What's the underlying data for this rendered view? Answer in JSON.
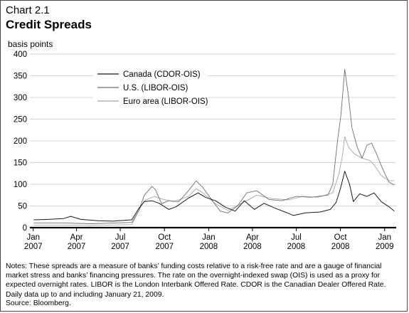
{
  "figure": {
    "chart_number": "Chart 2.1",
    "title": "Credit Spreads",
    "unit_label": "basis points",
    "notes": "Notes: These spreads are a measure of banks’ funding costs relative to a risk-free rate and are a gauge of financial market stress and banks’ financing pressures. The rate on the overnight-indexed swap (OIS) is used as a proxy for expected overnight rates. LIBOR is the London Interbank Offered Rate. CDOR is the Canadian Dealer Offered Rate. Daily data up to and including January 21, 2009.",
    "source": "Source: Bloomberg."
  },
  "chart_data": {
    "type": "line",
    "title": "Credit Spreads",
    "ylabel": "basis points",
    "ylim": [
      0,
      400
    ],
    "yticks": [
      0,
      50,
      100,
      150,
      200,
      250,
      300,
      350,
      400
    ],
    "xlim": [
      "2006-12-25",
      "2009-01-25"
    ],
    "xticks": [
      {
        "date": "2007-01-01",
        "label": [
          "Jan",
          "2007"
        ]
      },
      {
        "date": "2007-04-01",
        "label": [
          "Apr",
          "2007"
        ]
      },
      {
        "date": "2007-07-01",
        "label": [
          "Jul",
          "2007"
        ]
      },
      {
        "date": "2007-10-01",
        "label": [
          "Oct",
          "2007"
        ]
      },
      {
        "date": "2008-01-01",
        "label": [
          "Jan",
          "2008"
        ]
      },
      {
        "date": "2008-04-01",
        "label": [
          "Apr",
          "2008"
        ]
      },
      {
        "date": "2008-07-01",
        "label": [
          "Jul",
          "2008"
        ]
      },
      {
        "date": "2008-10-01",
        "label": [
          "Oct",
          "2008"
        ]
      },
      {
        "date": "2009-01-01",
        "label": [
          "Jan",
          "2009"
        ]
      }
    ],
    "grid": true,
    "legend_position": "top-left",
    "series": [
      {
        "name": "Canada (CDOR-OIS)",
        "color": "#1a1a1a",
        "width": 1.0,
        "points": [
          [
            "2007-01-02",
            18
          ],
          [
            "2007-02-01",
            19
          ],
          [
            "2007-03-05",
            21
          ],
          [
            "2007-03-20",
            26
          ],
          [
            "2007-04-10",
            19
          ],
          [
            "2007-05-15",
            16
          ],
          [
            "2007-06-15",
            15
          ],
          [
            "2007-07-25",
            18
          ],
          [
            "2007-08-09",
            45
          ],
          [
            "2007-08-20",
            60
          ],
          [
            "2007-09-05",
            62
          ],
          [
            "2007-09-20",
            56
          ],
          [
            "2007-10-10",
            42
          ],
          [
            "2007-10-25",
            48
          ],
          [
            "2007-11-20",
            68
          ],
          [
            "2007-12-10",
            80
          ],
          [
            "2007-12-25",
            70
          ],
          [
            "2008-01-15",
            62
          ],
          [
            "2008-02-05",
            47
          ],
          [
            "2008-02-25",
            38
          ],
          [
            "2008-03-15",
            62
          ],
          [
            "2008-04-05",
            42
          ],
          [
            "2008-04-25",
            56
          ],
          [
            "2008-05-20",
            44
          ],
          [
            "2008-06-10",
            35
          ],
          [
            "2008-06-25",
            28
          ],
          [
            "2008-07-20",
            34
          ],
          [
            "2008-08-20",
            36
          ],
          [
            "2008-09-10",
            42
          ],
          [
            "2008-09-22",
            58
          ],
          [
            "2008-10-01",
            90
          ],
          [
            "2008-10-10",
            130
          ],
          [
            "2008-10-20",
            100
          ],
          [
            "2008-10-28",
            60
          ],
          [
            "2008-11-10",
            78
          ],
          [
            "2008-11-25",
            72
          ],
          [
            "2008-12-10",
            80
          ],
          [
            "2008-12-25",
            60
          ],
          [
            "2009-01-10",
            48
          ],
          [
            "2009-01-21",
            38
          ]
        ]
      },
      {
        "name": "U.S. (LIBOR-OIS)",
        "color": "#6e6e6e",
        "width": 0.9,
        "points": [
          [
            "2007-01-02",
            11
          ],
          [
            "2007-03-01",
            11
          ],
          [
            "2007-05-01",
            9
          ],
          [
            "2007-07-25",
            12
          ],
          [
            "2007-08-09",
            40
          ],
          [
            "2007-08-20",
            75
          ],
          [
            "2007-09-05",
            95
          ],
          [
            "2007-09-12",
            88
          ],
          [
            "2007-09-25",
            55
          ],
          [
            "2007-10-10",
            62
          ],
          [
            "2007-10-31",
            60
          ],
          [
            "2007-11-20",
            85
          ],
          [
            "2007-12-06",
            108
          ],
          [
            "2007-12-20",
            92
          ],
          [
            "2008-01-10",
            60
          ],
          [
            "2008-01-25",
            38
          ],
          [
            "2008-02-10",
            34
          ],
          [
            "2008-03-01",
            50
          ],
          [
            "2008-03-20",
            80
          ],
          [
            "2008-04-10",
            85
          ],
          [
            "2008-05-05",
            65
          ],
          [
            "2008-06-01",
            62
          ],
          [
            "2008-07-01",
            72
          ],
          [
            "2008-08-01",
            70
          ],
          [
            "2008-09-05",
            75
          ],
          [
            "2008-09-15",
            100
          ],
          [
            "2008-09-25",
            200
          ],
          [
            "2008-10-02",
            260
          ],
          [
            "2008-10-10",
            365
          ],
          [
            "2008-10-18",
            300
          ],
          [
            "2008-10-25",
            230
          ],
          [
            "2008-11-05",
            185
          ],
          [
            "2008-11-15",
            160
          ],
          [
            "2008-11-25",
            190
          ],
          [
            "2008-12-05",
            195
          ],
          [
            "2008-12-15",
            170
          ],
          [
            "2008-12-30",
            130
          ],
          [
            "2009-01-10",
            105
          ],
          [
            "2009-01-21",
            98
          ]
        ]
      },
      {
        "name": "Euro area (LIBOR-OIS)",
        "color": "#a6a6a6",
        "width": 0.9,
        "points": [
          [
            "2007-01-02",
            6
          ],
          [
            "2007-03-01",
            6
          ],
          [
            "2007-05-01",
            5
          ],
          [
            "2007-07-25",
            7
          ],
          [
            "2007-08-09",
            40
          ],
          [
            "2007-08-20",
            62
          ],
          [
            "2007-09-10",
            72
          ],
          [
            "2007-09-25",
            66
          ],
          [
            "2007-10-20",
            60
          ],
          [
            "2007-11-20",
            72
          ],
          [
            "2007-12-06",
            90
          ],
          [
            "2007-12-20",
            80
          ],
          [
            "2008-01-15",
            55
          ],
          [
            "2008-02-10",
            40
          ],
          [
            "2008-03-20",
            62
          ],
          [
            "2008-04-10",
            75
          ],
          [
            "2008-05-10",
            67
          ],
          [
            "2008-06-15",
            64
          ],
          [
            "2008-07-15",
            72
          ],
          [
            "2008-08-15",
            70
          ],
          [
            "2008-09-15",
            80
          ],
          [
            "2008-09-28",
            125
          ],
          [
            "2008-10-05",
            165
          ],
          [
            "2008-10-10",
            210
          ],
          [
            "2008-10-18",
            185
          ],
          [
            "2008-10-30",
            170
          ],
          [
            "2008-11-15",
            160
          ],
          [
            "2008-12-01",
            155
          ],
          [
            "2008-12-10",
            145
          ],
          [
            "2008-12-25",
            120
          ],
          [
            "2009-01-10",
            108
          ],
          [
            "2009-01-21",
            108
          ]
        ]
      }
    ]
  }
}
